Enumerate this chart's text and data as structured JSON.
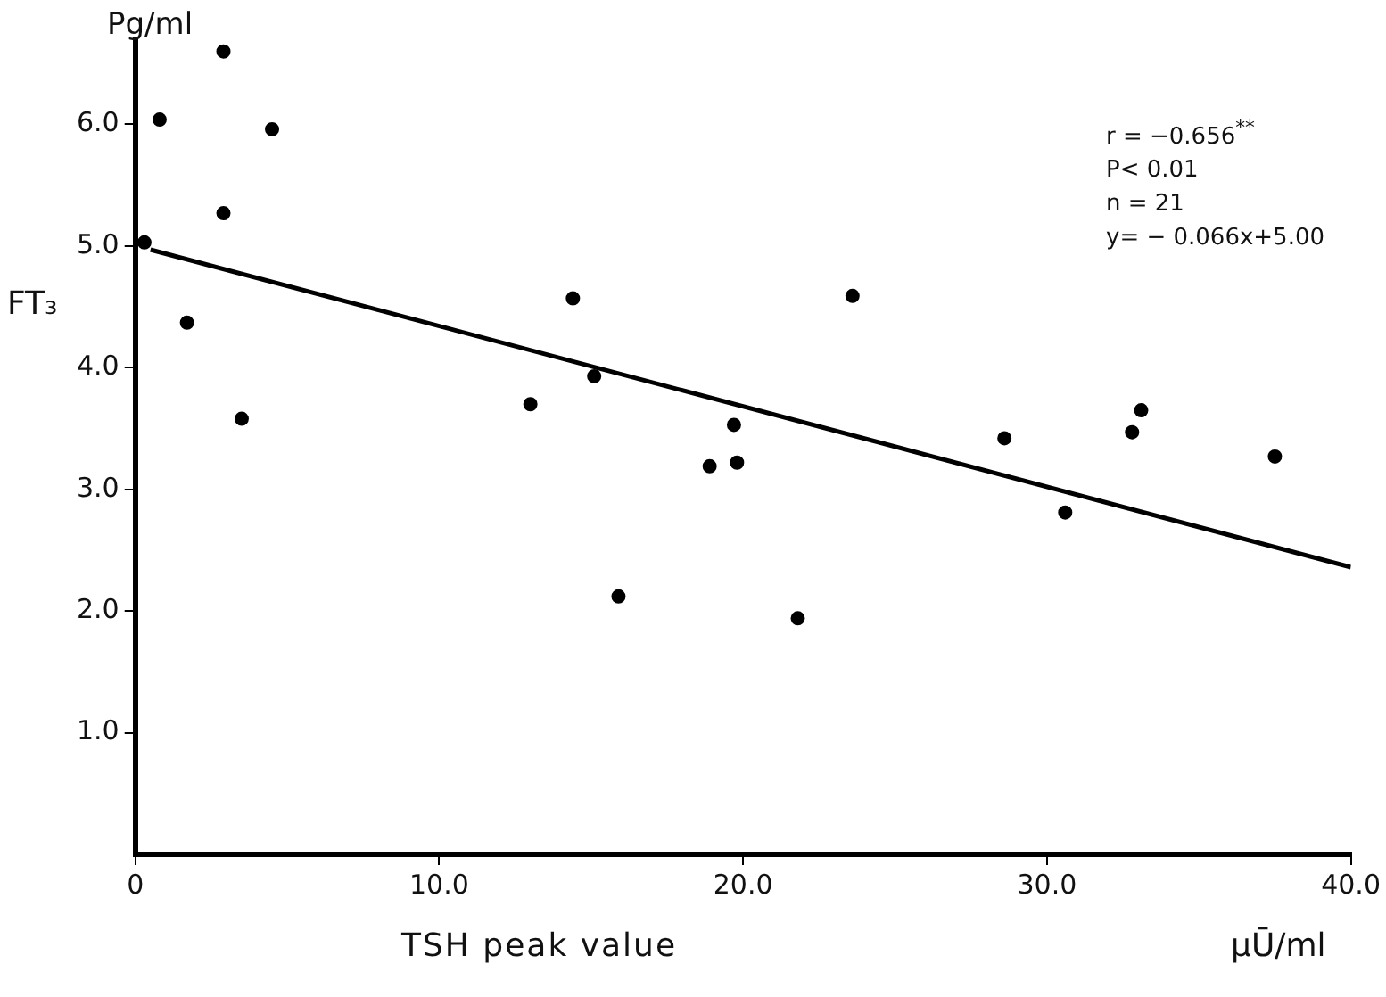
{
  "chart_data": {
    "type": "scatter",
    "xlabel": "TSH peak value",
    "ylabel": "FT₃",
    "annotations": [
      "Pg/ml",
      "μŪ/ml",
      "r = −0.656$^{**}$",
      "P< 0.01",
      "n = 21",
      "y= − 0.066x+5.00"
    ],
    "series": [
      {
        "color": "#000000",
        "x": [
          0.3,
          0.8,
          1.7,
          2.9,
          2.9,
          3.5,
          4.5,
          13.0,
          14.4,
          15.1,
          15.9,
          18.9,
          19.7,
          19.8,
          21.8,
          23.6,
          28.6,
          30.6,
          32.8,
          33.1,
          37.5
        ],
        "values": [
          5.03,
          6.04,
          4.37,
          6.6,
          5.27,
          3.58,
          5.96,
          3.7,
          4.57,
          3.93,
          2.12,
          3.19,
          3.53,
          3.22,
          1.94,
          4.59,
          3.42,
          2.81,
          3.47,
          3.65,
          3.27
        ]
      },
      {
        "type": "line",
        "marker": "none",
        "color": "#000000",
        "x": [
          0.5,
          40
        ],
        "values": [
          4.97,
          2.36
        ]
      }
    ],
    "xlim": [
      0,
      40
    ],
    "ylim": [
      0,
      6.7
    ],
    "xticks": [
      {
        "value": 0,
        "label": "0"
      },
      {
        "value": 10,
        "label": "10.0"
      },
      {
        "value": 20,
        "label": "20.0"
      },
      {
        "value": 30,
        "label": "30.0"
      },
      {
        "value": 40,
        "label": "40.0"
      }
    ],
    "yticks": [
      {
        "value": 1,
        "label": "1.0"
      },
      {
        "value": 2,
        "label": "2.0"
      },
      {
        "value": 3,
        "label": "3.0"
      },
      {
        "value": 4,
        "label": "4.0"
      },
      {
        "value": 5,
        "label": "5.0"
      },
      {
        "value": 6,
        "label": "6.0"
      }
    ],
    "grid": false,
    "legend": false,
    "marker": "circle",
    "line_style": "solid"
  }
}
